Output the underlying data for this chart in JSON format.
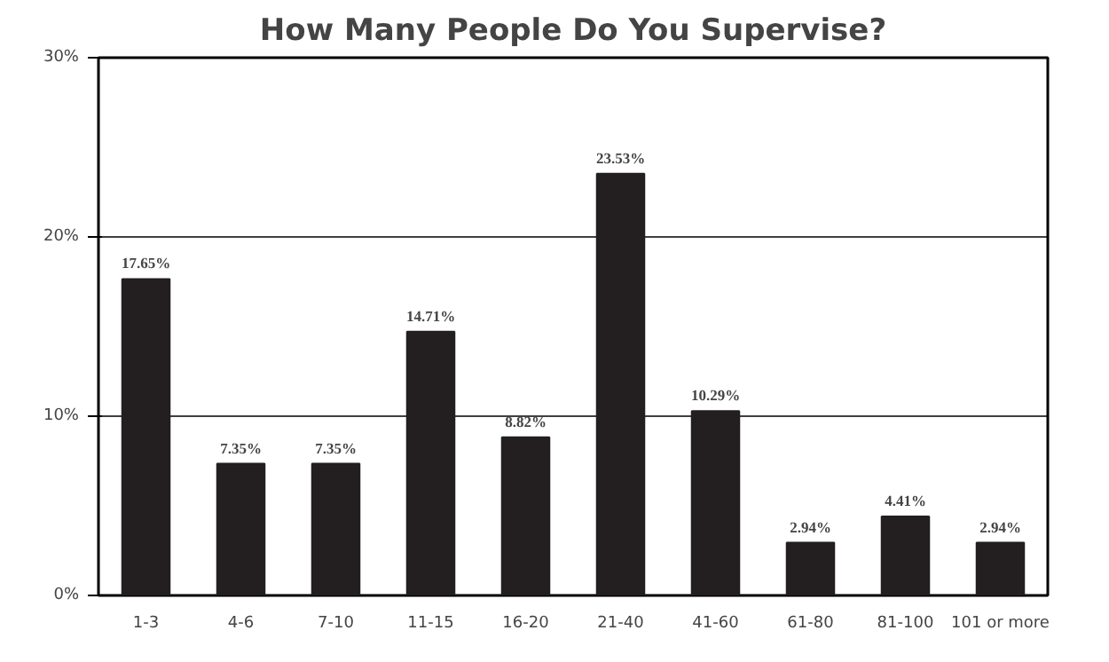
{
  "chart_data": {
    "type": "bar",
    "title": "How Many People Do You Supervise?",
    "categories": [
      "1-3",
      "4-6",
      "7-10",
      "11-15",
      "16-20",
      "21-40",
      "41-60",
      "61-80",
      "81-100",
      "101 or more"
    ],
    "values": [
      17.65,
      7.35,
      7.35,
      14.71,
      8.82,
      23.53,
      10.29,
      2.94,
      4.41,
      2.94
    ],
    "value_labels": [
      "17.65%",
      "7.35%",
      "7.35%",
      "14.71%",
      "8.82%",
      "23.53%",
      "10.29%",
      "2.94%",
      "4.41%",
      "2.94%"
    ],
    "color": "#231f20",
    "ylim": [
      0,
      30
    ],
    "yticks": [
      {
        "value": 0,
        "label": "0%"
      },
      {
        "value": 10,
        "label": "10%"
      },
      {
        "value": 20,
        "label": "20%"
      },
      {
        "value": 30,
        "label": "30%"
      }
    ],
    "grid": "y"
  }
}
